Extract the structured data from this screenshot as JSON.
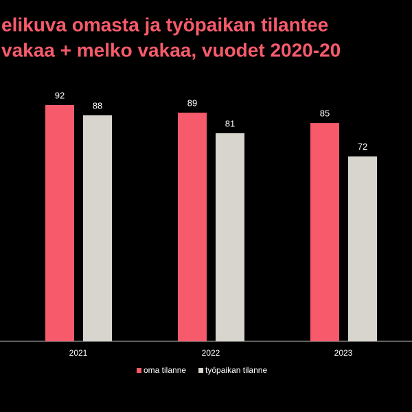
{
  "chart_data": {
    "type": "bar",
    "title_lines": [
      "elikuva omasta ja työpaikan tilantee",
      "vakaa + melko vakaa, vuodet 2020-20"
    ],
    "categories": [
      "2021",
      "2022",
      "2023"
    ],
    "series": [
      {
        "name": "oma tilanne",
        "color": "#f75b6b",
        "values": [
          92,
          89,
          85
        ]
      },
      {
        "name": "työpaikan tilanne",
        "color": "#d8d4ce",
        "values": [
          88,
          81,
          72
        ]
      }
    ],
    "ylim": [
      0,
      100
    ],
    "title_color": "#f75b6b"
  }
}
